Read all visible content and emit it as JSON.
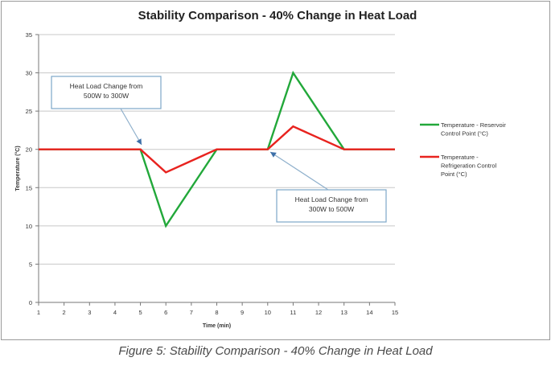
{
  "chart_data": {
    "type": "line",
    "title": "Stability Comparison - 40% Change in Heat Load",
    "xlabel": "Time (min)",
    "ylabel": "Temperature (°C)",
    "x": [
      1,
      5,
      6,
      8,
      10,
      11,
      13,
      15
    ],
    "xlim": [
      1,
      15
    ],
    "ylim": [
      0,
      35
    ],
    "xticks": [
      1,
      2,
      3,
      4,
      5,
      6,
      7,
      8,
      9,
      10,
      11,
      12,
      13,
      14,
      15
    ],
    "yticks": [
      0,
      5,
      10,
      15,
      20,
      25,
      30,
      35
    ],
    "grid": "horizontal",
    "legend_position": "right",
    "series": [
      {
        "name": "Temperature - Reservoir Control Point (°C)",
        "legend_lines": [
          "Temperature - Reservoir",
          "Control Point (°C)"
        ],
        "color": "#22a83a",
        "values": [
          20,
          20,
          10,
          20,
          20,
          30,
          20,
          20
        ]
      },
      {
        "name": "Temperature - Refrigeration Control Point (°C)",
        "legend_lines": [
          "Temperature -",
          "Refrigeration Control",
          "Point (°C)"
        ],
        "color": "#e8231f",
        "values": [
          20,
          20,
          17,
          20,
          20,
          23,
          20,
          20
        ]
      }
    ],
    "annotations": [
      {
        "lines": [
          "Heat Load Change from",
          "500W  to 300W"
        ],
        "points_to": {
          "x": 5,
          "y": 20
        }
      },
      {
        "lines": [
          "Heat Load Change from",
          "300W to 500W"
        ],
        "points_to": {
          "x": 10,
          "y": 20
        }
      }
    ]
  },
  "caption": "Figure 5: Stability Comparison - 40% Change in Heat Load"
}
